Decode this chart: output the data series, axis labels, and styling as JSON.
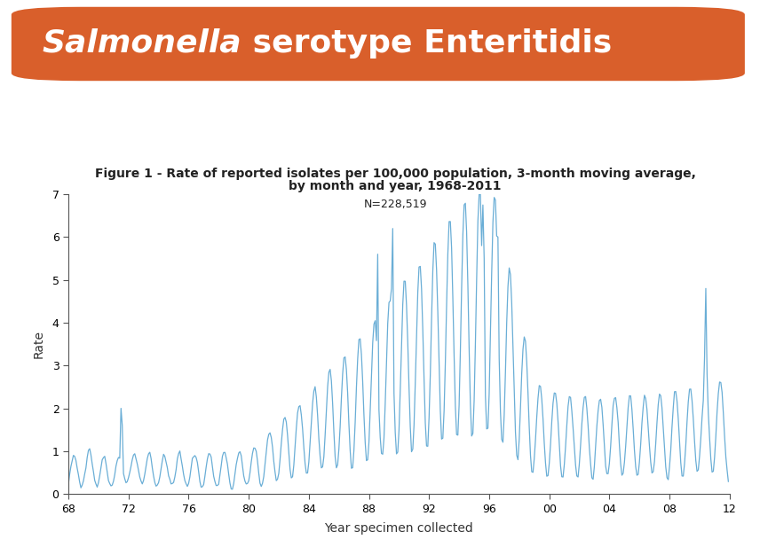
{
  "title_banner_text_italic": "Salmonella",
  "title_banner_text_normal": " serotype Enteritidis",
  "banner_color": "#D95F2B",
  "figure_title_line1": "Figure 1 - Rate of reported isolates per 100,000 population, 3-month moving average,",
  "figure_title_line2": "by month and year, 1968-2011",
  "n_label": "N=228,519",
  "xlabel": "Year specimen collected",
  "ylabel": "Rate",
  "ylim": [
    0,
    7
  ],
  "yticks": [
    0,
    1,
    2,
    3,
    4,
    5,
    6,
    7
  ],
  "xtick_labels": [
    "68",
    "72",
    "76",
    "80",
    "84",
    "88",
    "92",
    "96",
    "00",
    "04",
    "08",
    "12"
  ],
  "xtick_positions": [
    1968,
    1972,
    1976,
    1980,
    1984,
    1988,
    1992,
    1996,
    2000,
    2004,
    2008,
    2012
  ],
  "line_color": "#6aaed6",
  "background_color": "#ffffff",
  "banner_fontsize": 26,
  "axis_title_fontsize": 10,
  "tick_fontsize": 9,
  "fig_title_fontsize": 10
}
